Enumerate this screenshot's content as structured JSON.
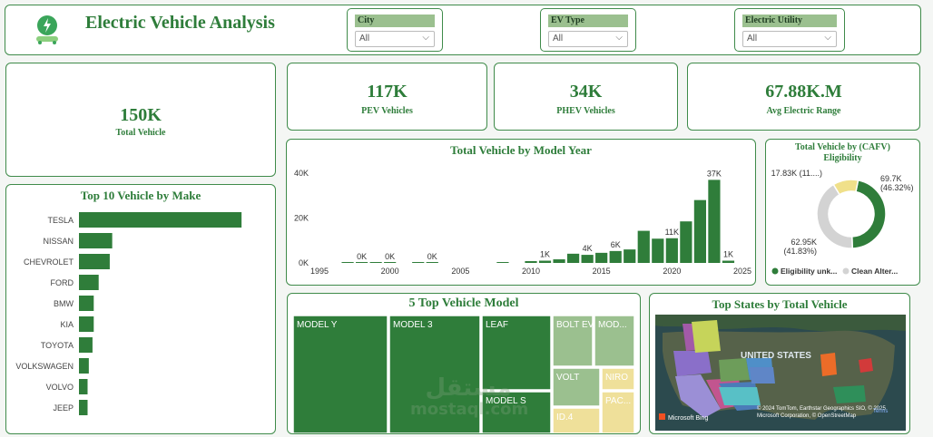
{
  "header": {
    "title": "Electric Vehicle Analysis",
    "slicers": [
      {
        "label": "City",
        "value": "All"
      },
      {
        "label": "EV Type",
        "value": "All"
      },
      {
        "label": "Electric Utility",
        "value": "All"
      }
    ]
  },
  "kpis": {
    "total": {
      "value": "150K",
      "label": "Total Vehicle"
    },
    "pev": {
      "value": "117K",
      "label": "PEV Vehicles"
    },
    "phev": {
      "value": "34K",
      "label": "PHEV Vehicles"
    },
    "range": {
      "value": "67.88K.M",
      "label": "Avg Electric Range"
    }
  },
  "colors": {
    "accent": "#2e7d3a",
    "bar": "#2f7d3a",
    "donut_gray": "#d3d3d3",
    "donut_yellow": "#f0e08a"
  },
  "chart_data": [
    {
      "type": "bar",
      "title": "Top 10 Vehicle by Make",
      "orientation": "horizontal",
      "categories": [
        "TESLA",
        "NISSAN",
        "CHEVROLET",
        "FORD",
        "BMW",
        "KIA",
        "TOYOTA",
        "VOLKSWAGEN",
        "VOLVO",
        "JEEP"
      ],
      "values": [
        66000,
        13500,
        12500,
        8000,
        6000,
        6000,
        5500,
        4000,
        3500,
        3500
      ],
      "xlim": [
        0,
        70000
      ]
    },
    {
      "type": "bar",
      "title": "Total Vehicle by Model Year",
      "x": [
        1997,
        1998,
        1999,
        2000,
        2002,
        2003,
        2008,
        2010,
        2011,
        2012,
        2013,
        2014,
        2015,
        2016,
        2017,
        2018,
        2019,
        2020,
        2021,
        2022,
        2023,
        2024
      ],
      "values": [
        0.3,
        0.1,
        0.1,
        0.1,
        0.1,
        0.1,
        0.1,
        0.8,
        1.0,
        1.6,
        4.1,
        3.6,
        4.5,
        5.3,
        6.0,
        14.3,
        10.8,
        11.0,
        18.5,
        28.0,
        37.0,
        1.0
      ],
      "data_labels": [
        {
          "x": 1998,
          "text": "0K"
        },
        {
          "x": 2000,
          "text": "0K"
        },
        {
          "x": 2003,
          "text": "0K"
        },
        {
          "x": 2011,
          "text": "1K"
        },
        {
          "x": 2014,
          "text": "4K"
        },
        {
          "x": 2016,
          "text": "6K"
        },
        {
          "x": 2020,
          "text": "11K"
        },
        {
          "x": 2023,
          "text": "37K"
        },
        {
          "x": 2024,
          "text": "1K"
        }
      ],
      "x_ticks": [
        "1995",
        "2000",
        "2005",
        "2010",
        "2015",
        "2020",
        "2025"
      ],
      "y_ticks": [
        "0K",
        "20K",
        "40K"
      ],
      "xlim": [
        1995,
        2025
      ],
      "ylim": [
        0,
        42
      ]
    },
    {
      "type": "pie",
      "title": "Total Vehicle by (CAFV) Eligibility",
      "slices": [
        {
          "name": "Eligibility unk...",
          "value": 69.7,
          "label": "69.7K (46.32%)"
        },
        {
          "name": "Clean Alter...",
          "value": 62.95,
          "label": "62.95K (41.83%)"
        },
        {
          "name": "Not eligible",
          "value": 17.83,
          "label": "17.83K (11....)"
        }
      ],
      "legend": [
        "Eligibility unk...",
        "Clean Alter..."
      ]
    },
    {
      "type": "treemap",
      "title": "5 Top Vehicle Model",
      "items": [
        "MODEL Y",
        "MODEL 3",
        "LEAF",
        "MODEL S",
        "BOLT EV",
        "MOD...",
        "VOLT",
        "NIRO",
        "ID.4",
        "PAC..."
      ]
    }
  ],
  "map": {
    "title": "Top States by Total Vehicle",
    "country_label": "UNITED STATES",
    "provider": "Microsoft Bing",
    "attribution": "© 2024 TomTom, Earthstar Geographics SIO, © 2025 Microsoft Corporation, © OpenStreetMap",
    "terms": "Terms"
  },
  "watermark": {
    "arabic": "مستقل",
    "latin": "mostaql.com"
  }
}
